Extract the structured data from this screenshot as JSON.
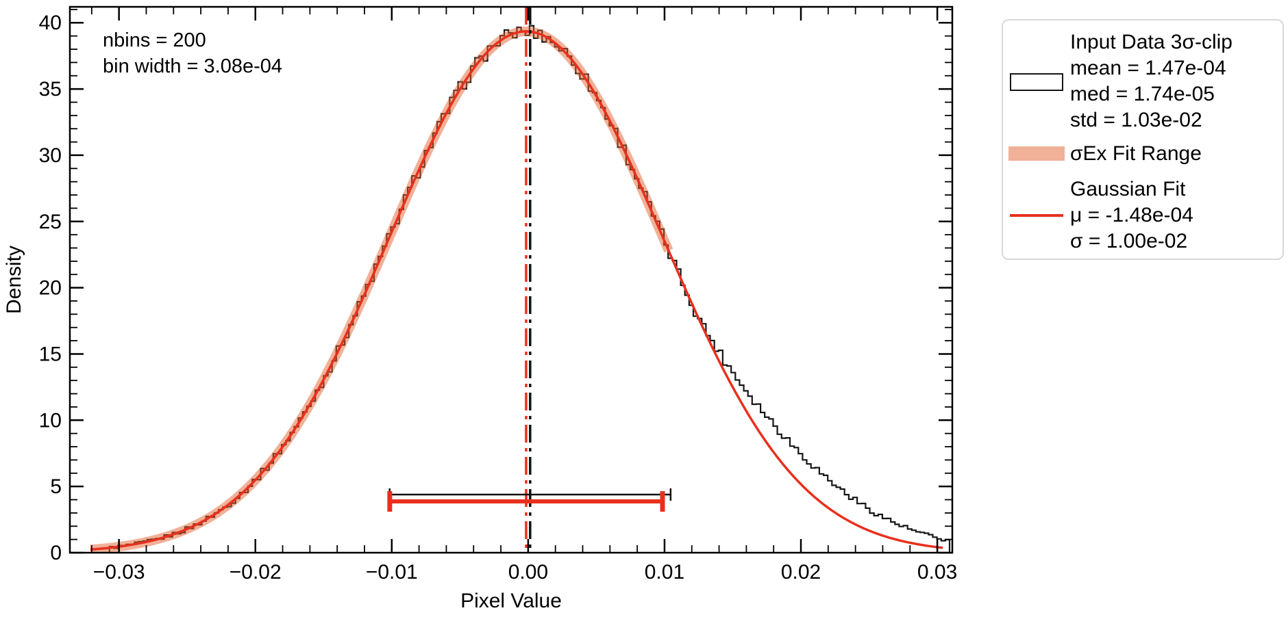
{
  "figure": {
    "background": "#ffffff",
    "annotation": {
      "line1": "nbins = 200",
      "line2": "bin width = 3.08e-04"
    }
  },
  "legend": {
    "border_color": "#d8d8d8",
    "input_data": {
      "title": "Input Data 3σ-clip",
      "mean": "mean = 1.47e-04",
      "med": "med = 1.74e-05",
      "std": "std = 1.03e-02"
    },
    "fit_range": {
      "label": "σEx Fit Range"
    },
    "gaussian": {
      "title": "Gaussian Fit",
      "mu": "μ = -1.48e-04",
      "sigma": "σ = 1.00e-02"
    }
  },
  "chart_data": {
    "type": "bar",
    "subtype": "histogram-with-gaussian-fit",
    "title": "",
    "xlabel": "Pixel Value",
    "ylabel": "Density",
    "xlim": [
      -0.0336,
      0.0311
    ],
    "ylim": [
      0,
      41.2
    ],
    "x_major_ticks": [
      -0.03,
      -0.02,
      -0.01,
      0,
      0.01,
      0.02,
      0.03
    ],
    "x_minor_step": 0.002,
    "y_major_ticks": [
      0,
      5,
      10,
      15,
      20,
      25,
      30,
      35,
      40
    ],
    "y_minor_step": 1,
    "grid": false,
    "legend_position": "outside-upper-right",
    "histogram": {
      "label": "Input Data 3σ-clip",
      "nbins": 200,
      "bin_width": 0.000308,
      "range": [
        -0.0307,
        0.0309
      ],
      "mean": 0.000147,
      "median": 1.74e-05,
      "std": 0.0103,
      "peak_density": 39.35,
      "color": "#151515",
      "right_tail_excess": {
        "start": 0.012,
        "scale": 0.011,
        "power": 1.6,
        "amplitude": 0.75
      },
      "noise_amplitude": 1.0
    },
    "gaussian_fit": {
      "label": "Gaussian Fit",
      "mu": -0.000148,
      "sigma": 0.01,
      "peak_density": 39.35,
      "x_range": [
        -0.0321,
        0.0304
      ],
      "color": "#e8301d",
      "line_width": 3.5
    },
    "fit_range_band": {
      "label": "σEx Fit Range",
      "x_range": [
        -0.0321,
        0.0103
      ],
      "color": "rgba(226,100,50,0.5)",
      "stroke_width": 14
    },
    "vlines": [
      {
        "name": "data-mean-line",
        "x": 0.000147,
        "color": "#111111",
        "width": 3.5,
        "dash": "26 8 5 8"
      },
      {
        "name": "fit-mu-line",
        "x": -0.000148,
        "color": "#e8301d",
        "width": 3.5,
        "dash": "26 8 5 8"
      }
    ],
    "errorbars": [
      {
        "name": "data-std-errorbar",
        "center": 0.000147,
        "halfwidth": 0.0103,
        "y": 4.39,
        "color": "#111111",
        "line_width": 2.5,
        "cap_height": 18,
        "cap_width": 2.5
      },
      {
        "name": "fit-sigma-errorbar",
        "center": -0.000148,
        "halfwidth": 0.01,
        "y": 3.87,
        "color": "#e8301d",
        "line_width": 6,
        "cap_height": 30,
        "cap_width": 7
      }
    ]
  }
}
